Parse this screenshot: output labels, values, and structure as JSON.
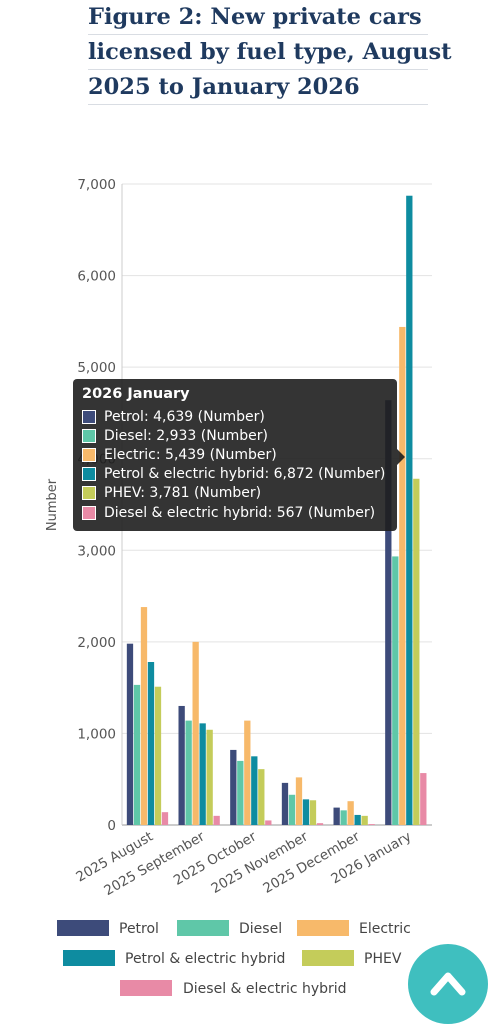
{
  "title_lines": [
    "Figure 2: New private cars",
    "licensed by fuel type, August",
    "2025 to January 2026"
  ],
  "chart_data": {
    "type": "bar",
    "title": "Figure 2: New private cars licensed by fuel type, August 2025 to January 2026",
    "ylabel": "Number",
    "ylim": [
      0,
      7000
    ],
    "yticks": [
      "0",
      "1,000",
      "2,000",
      "3,000",
      "4,000",
      "5,000",
      "6,000",
      "7,000"
    ],
    "ytick_values": [
      0,
      1000,
      2000,
      3000,
      4000,
      5000,
      6000,
      7000
    ],
    "categories": [
      "2025 August",
      "2025 September",
      "2025 October",
      "2025 November",
      "2025 December",
      "2026 January"
    ],
    "series": [
      {
        "name": "Petrol",
        "color": "#3d4b7a",
        "values": [
          1980,
          1300,
          820,
          460,
          190,
          4639
        ]
      },
      {
        "name": "Diesel",
        "color": "#5fc7a8",
        "values": [
          1530,
          1140,
          700,
          330,
          160,
          2933
        ]
      },
      {
        "name": "Electric",
        "color": "#f7b96a",
        "values": [
          2380,
          2000,
          1140,
          520,
          260,
          5439
        ]
      },
      {
        "name": "Petrol & electric hybrid",
        "color": "#0e8ca0",
        "values": [
          1780,
          1110,
          750,
          280,
          110,
          6872
        ]
      },
      {
        "name": "PHEV",
        "color": "#c4cc5a",
        "values": [
          1510,
          1040,
          610,
          270,
          100,
          3781
        ]
      },
      {
        "name": "Diesel & electric hybrid",
        "color": "#e88aa6",
        "values": [
          140,
          100,
          50,
          20,
          10,
          567
        ]
      }
    ],
    "grid": true,
    "legend_position": "bottom"
  },
  "tooltip": {
    "title": "2026 January",
    "rows": [
      "Petrol: 4,639 (Number)",
      "Diesel: 2,933 (Number)",
      "Electric: 5,439 (Number)",
      "Petrol & electric hybrid: 6,872 (Number)",
      "PHEV: 3,781 (Number)",
      "Diesel & electric hybrid: 567 (Number)"
    ]
  },
  "scroll_top_icon": "chevron-up-icon"
}
